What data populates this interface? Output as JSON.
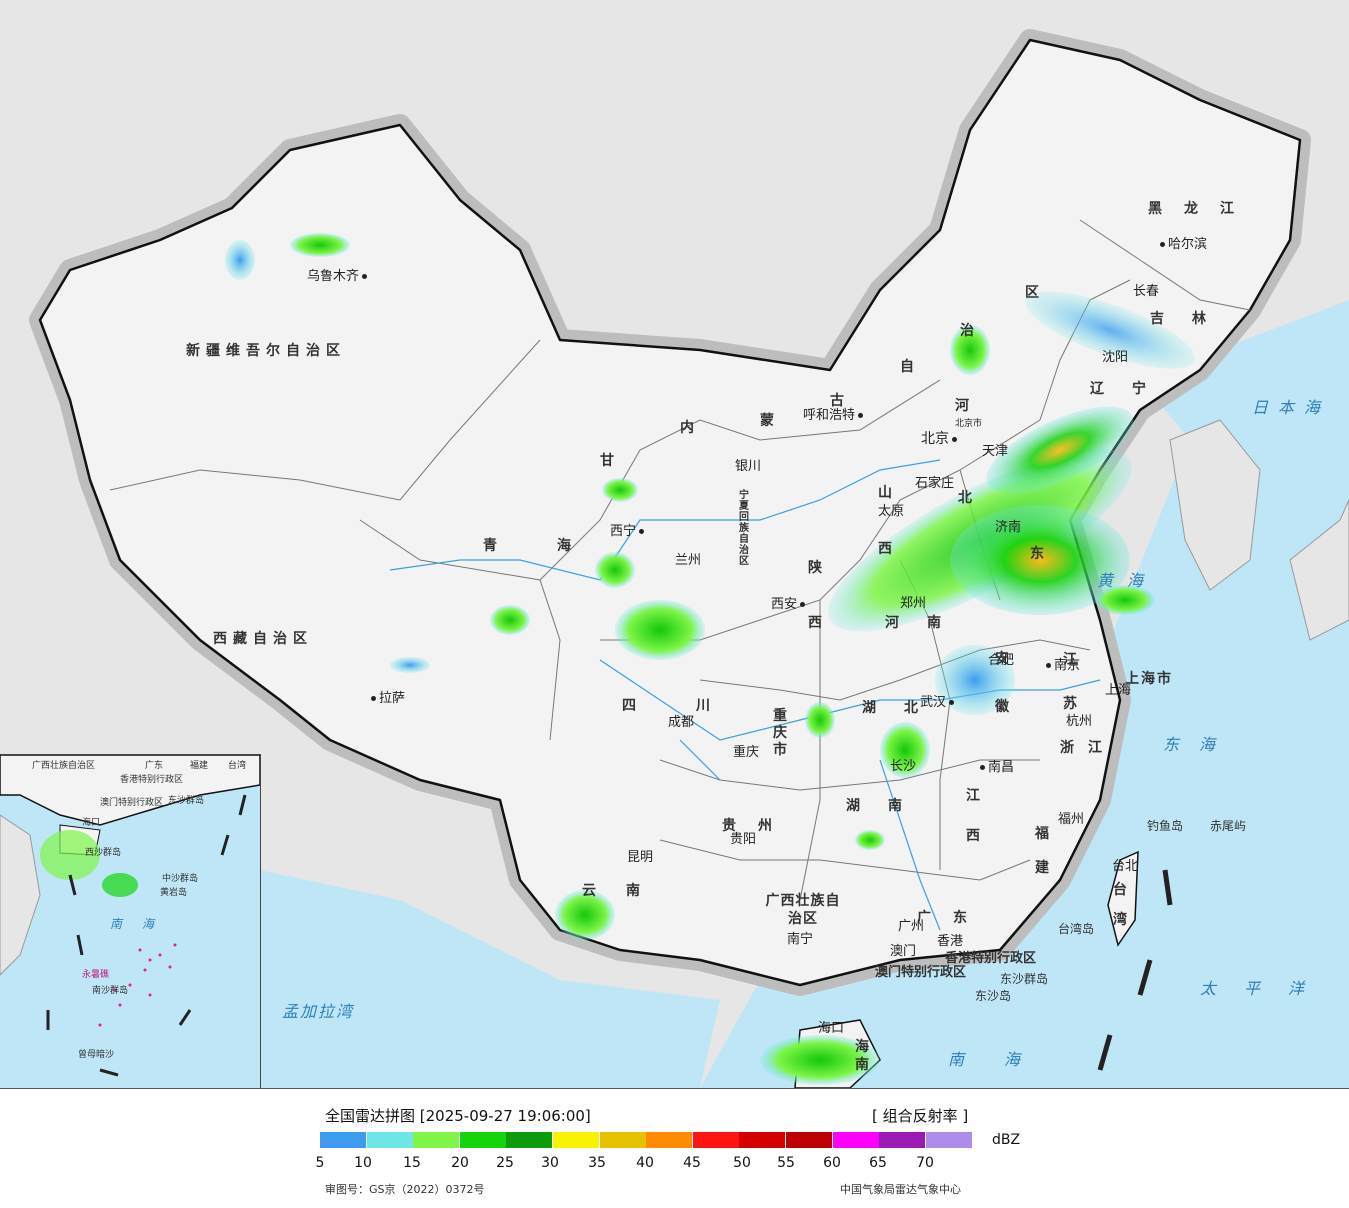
{
  "map": {
    "cities": [
      {
        "name": "乌鲁木齐"
      },
      {
        "name": "哈尔滨"
      },
      {
        "name": "长春"
      },
      {
        "name": "沈阳"
      },
      {
        "name": "呼和浩特"
      },
      {
        "name": "北京"
      },
      {
        "name": "北京市"
      },
      {
        "name": "天津"
      },
      {
        "name": "石家庄"
      },
      {
        "name": "太原"
      },
      {
        "name": "济南"
      },
      {
        "name": "银川"
      },
      {
        "name": "西宁"
      },
      {
        "name": "兰州"
      },
      {
        "name": "西安"
      },
      {
        "name": "郑州"
      },
      {
        "name": "合肥"
      },
      {
        "name": "南京"
      },
      {
        "name": "上海"
      },
      {
        "name": "杭州"
      },
      {
        "name": "武汉"
      },
      {
        "name": "成都"
      },
      {
        "name": "重庆"
      },
      {
        "name": "拉萨"
      },
      {
        "name": "长沙"
      },
      {
        "name": "南昌"
      },
      {
        "name": "福州"
      },
      {
        "name": "台北"
      },
      {
        "name": "贵阳"
      },
      {
        "name": "昆明"
      },
      {
        "name": "南宁"
      },
      {
        "name": "广州"
      },
      {
        "name": "澳门"
      },
      {
        "name": "香港"
      },
      {
        "name": "海口"
      }
    ],
    "provinces": [
      "新疆维吾尔自治区",
      "西藏自治区",
      "青海",
      "甘",
      "内",
      "蒙",
      "古",
      "自",
      "治",
      "区",
      "黑龙江",
      "吉林",
      "辽宁",
      "河",
      "北",
      "山",
      "西",
      "东",
      "陕",
      "西",
      "宁夏回族自治区",
      "四川",
      "重庆市",
      "湖北",
      "湖南",
      "河南",
      "安徽",
      "江苏",
      "上海市",
      "浙江",
      "江西",
      "福建",
      "贵州",
      "云南",
      "广西壮族自治区",
      "广东",
      "海南",
      "台湾",
      "香港特别行政区",
      "澳门特别行政区"
    ],
    "seas": [
      "日本海",
      "黄海",
      "东海",
      "太平洋",
      "南海",
      "孟加拉湾"
    ],
    "islands": [
      "钓鱼岛",
      "赤尾屿",
      "台湾岛",
      "东沙群岛",
      "东沙岛"
    ],
    "inset_labels": [
      "广西壮族自治区",
      "广东",
      "福建",
      "台湾",
      "香港特别行政区",
      "澳门特别行政区",
      "东沙群岛",
      "海口",
      "西沙群岛",
      "中沙群岛",
      "黄岩岛",
      "南海",
      "永暑礁",
      "南沙群岛",
      "曾母暗沙"
    ]
  },
  "legend": {
    "title": "全国雷达拼图 [2025-09-27 19:06:00]",
    "product": "[ 组合反射率 ]",
    "unit": "dBZ",
    "colors": [
      "#3d9cf0",
      "#6ee6e8",
      "#7ef547",
      "#14d40c",
      "#0f9c0a",
      "#f8f400",
      "#e6c200",
      "#ff8c00",
      "#ff1414",
      "#d40000",
      "#c00000",
      "#ff00ff",
      "#9c1ab4",
      "#ae8ceb"
    ],
    "ticks": [
      "5",
      "10",
      "15",
      "20",
      "25",
      "30",
      "35",
      "40",
      "45",
      "50",
      "55",
      "60",
      "65",
      "70"
    ],
    "approval": "审图号：GS京（2022）0372号",
    "source": "中国气象局雷达气象中心"
  }
}
